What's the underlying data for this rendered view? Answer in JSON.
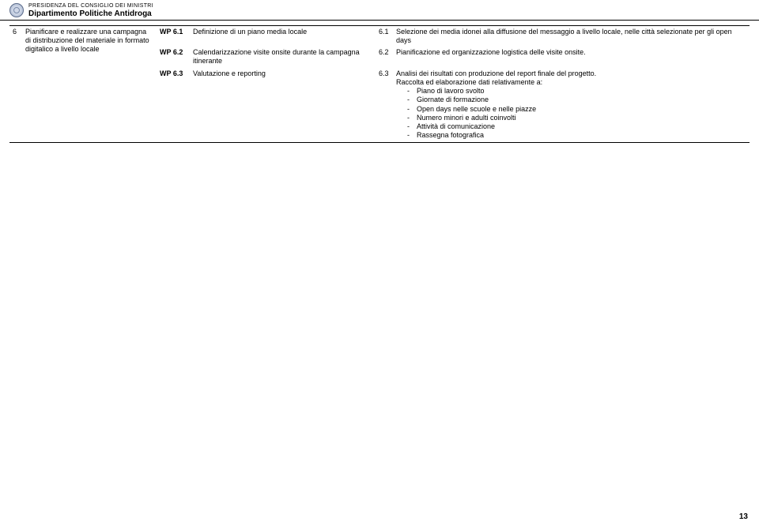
{
  "header": {
    "line1": "PRESIDENZA DEL CONSIGLIO DEI MINISTRI",
    "line2": "Dipartimento Politiche Antidroga"
  },
  "row": {
    "num": "6",
    "title": "Pianificare e realizzare una campagna di distribuzione del materiale in formato digitalico a livello locale"
  },
  "wp": [
    {
      "code": "WP 6.1",
      "desc": "Definizione di un piano media locale",
      "idx": "6.1",
      "result": "Selezione dei media idonei alla diffusione del messaggio a livello locale, nelle città selezionate per gli open days"
    },
    {
      "code": "WP 6.2",
      "desc": "Calendarizzazione visite onsite durante la campagna itinerante",
      "idx": "6.2",
      "result": "Pianificazione ed organizzazione logistica delle visite onsite."
    },
    {
      "code": "WP 6.3",
      "desc": "Valutazione e reporting",
      "idx": "6.3",
      "result_intro": "Analisi dei risultati con produzione del report finale del progetto.",
      "result_sub": "Raccolta ed elaborazione dati relativamente a:",
      "bullets": [
        "Piano di lavoro svolto",
        "Giornate di formazione",
        "Open days nelle scuole e nelle piazze",
        "Numero minori e adulti coinvolti",
        "Attività di comunicazione",
        "Rassegna fotografica"
      ]
    }
  ],
  "page_number": "13"
}
